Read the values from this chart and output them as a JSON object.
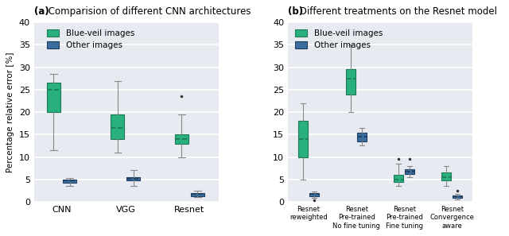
{
  "title_a_bold": "(a)",
  "title_a_rest": " Comparision of different CNN architectures",
  "title_b_bold": "(b)",
  "title_b_rest": " Different treatments on the Resnet model",
  "ylabel": "Percentage relative error [%]",
  "ylim": [
    0,
    40
  ],
  "yticks": [
    0,
    5,
    10,
    15,
    20,
    25,
    30,
    35,
    40
  ],
  "bg_color": "#e8eaf2",
  "green_color": "#2ab07f",
  "blue_color": "#3b6d9e",
  "legend_labels": [
    "Blue-veil images",
    "Other images"
  ],
  "panel_a": {
    "categories": [
      "CNN",
      "VGG",
      "Resnet"
    ],
    "green_boxes": [
      {
        "whislo": 11.5,
        "q1": 20.0,
        "med": 25.0,
        "mean": 25.0,
        "q3": 26.5,
        "whishi": 28.5,
        "fliers": []
      },
      {
        "whislo": 11.0,
        "q1": 14.0,
        "med": 16.5,
        "mean": 17.0,
        "q3": 19.5,
        "whishi": 27.0,
        "fliers": []
      },
      {
        "whislo": 10.0,
        "q1": 13.0,
        "med": 14.0,
        "mean": 14.0,
        "q3": 15.0,
        "whishi": 19.5,
        "fliers": [
          23.5
        ]
      }
    ],
    "blue_boxes": [
      {
        "whislo": 3.5,
        "q1": 4.2,
        "med": 4.7,
        "mean": 4.7,
        "q3": 5.0,
        "whishi": 5.3,
        "fliers": []
      },
      {
        "whislo": 3.5,
        "q1": 4.7,
        "med": 5.1,
        "mean": 5.1,
        "q3": 5.5,
        "whishi": 7.0,
        "fliers": []
      },
      {
        "whislo": 1.0,
        "q1": 1.3,
        "med": 1.7,
        "mean": 1.7,
        "q3": 2.0,
        "whishi": 2.5,
        "fliers": []
      }
    ]
  },
  "panel_b": {
    "categories": [
      "Resnet\nreweighted",
      "Resnet\nPre-trained\nNo fine tuning",
      "Resnet\nPre-trained\nFine tuning",
      "Resnet\nConvergence\naware"
    ],
    "green_boxes": [
      {
        "whislo": 5.0,
        "q1": 10.0,
        "med": 14.0,
        "mean": 14.0,
        "q3": 18.0,
        "whishi": 22.0,
        "fliers": []
      },
      {
        "whislo": 20.0,
        "q1": 24.0,
        "med": 27.5,
        "mean": 27.5,
        "q3": 29.5,
        "whishi": 35.0,
        "fliers": []
      },
      {
        "whislo": 3.5,
        "q1": 4.5,
        "med": 5.0,
        "mean": 5.0,
        "q3": 6.0,
        "whishi": 8.5,
        "fliers": [
          9.5
        ]
      },
      {
        "whislo": 3.5,
        "q1": 4.8,
        "med": 5.5,
        "mean": 5.5,
        "q3": 6.5,
        "whishi": 8.0,
        "fliers": []
      }
    ],
    "blue_boxes": [
      {
        "whislo": 0.8,
        "q1": 1.3,
        "med": 1.8,
        "mean": 1.8,
        "q3": 2.0,
        "whishi": 2.3,
        "fliers": [
          0.3
        ]
      },
      {
        "whislo": 12.5,
        "q1": 13.5,
        "med": 14.5,
        "mean": 14.5,
        "q3": 15.5,
        "whishi": 16.5,
        "fliers": []
      },
      {
        "whislo": 5.5,
        "q1": 6.2,
        "med": 6.8,
        "mean": 6.8,
        "q3": 7.3,
        "whishi": 8.0,
        "fliers": [
          9.5
        ]
      },
      {
        "whislo": 0.5,
        "q1": 0.8,
        "med": 1.2,
        "mean": 1.2,
        "q3": 1.5,
        "whishi": 1.8,
        "fliers": [
          2.5
        ]
      }
    ]
  }
}
